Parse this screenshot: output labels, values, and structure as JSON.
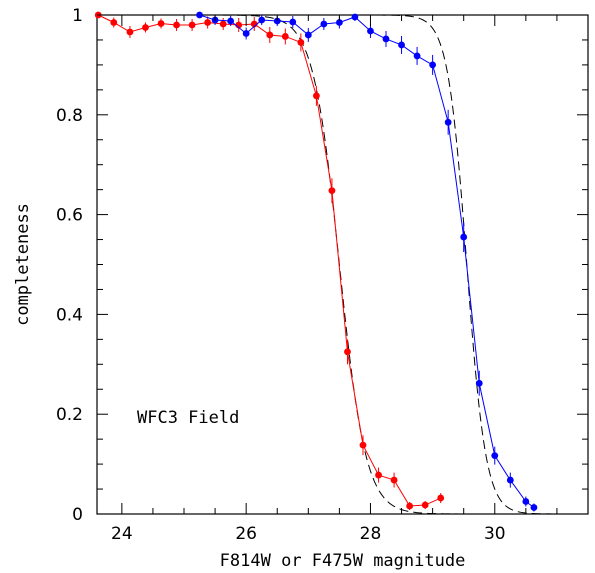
{
  "chart_data": {
    "type": "line",
    "title": "",
    "xlabel": "F814W or F475W magnitude",
    "ylabel": "completeness",
    "xlim": [
      23.6,
      31.5
    ],
    "ylim": [
      0,
      1
    ],
    "x_ticks": [
      "24",
      "26",
      "28",
      "30"
    ],
    "y_ticks": [
      "0",
      "0.2",
      "0.4",
      "0.6",
      "0.8",
      "1"
    ],
    "annotation": "WFC3 Field",
    "grid": false,
    "series": [
      {
        "color": "#ff0000",
        "style": "points-with-errorbars-connected",
        "points": [
          {
            "x": 23.62,
            "y": 1.0,
            "err": 0.005
          },
          {
            "x": 23.87,
            "y": 0.985,
            "err": 0.01
          },
          {
            "x": 24.13,
            "y": 0.966,
            "err": 0.012
          },
          {
            "x": 24.38,
            "y": 0.975,
            "err": 0.01
          },
          {
            "x": 24.63,
            "y": 0.983,
            "err": 0.01
          },
          {
            "x": 24.88,
            "y": 0.98,
            "err": 0.012
          },
          {
            "x": 25.13,
            "y": 0.98,
            "err": 0.012
          },
          {
            "x": 25.38,
            "y": 0.985,
            "err": 0.012
          },
          {
            "x": 25.63,
            "y": 0.982,
            "err": 0.012
          },
          {
            "x": 25.88,
            "y": 0.98,
            "err": 0.014
          },
          {
            "x": 26.13,
            "y": 0.982,
            "err": 0.014
          },
          {
            "x": 26.38,
            "y": 0.96,
            "err": 0.016
          },
          {
            "x": 26.63,
            "y": 0.957,
            "err": 0.016
          },
          {
            "x": 26.88,
            "y": 0.945,
            "err": 0.018
          },
          {
            "x": 27.13,
            "y": 0.838,
            "err": 0.02
          },
          {
            "x": 27.38,
            "y": 0.648,
            "err": 0.025
          },
          {
            "x": 27.63,
            "y": 0.325,
            "err": 0.025
          },
          {
            "x": 27.88,
            "y": 0.138,
            "err": 0.02
          },
          {
            "x": 28.13,
            "y": 0.078,
            "err": 0.015
          },
          {
            "x": 28.38,
            "y": 0.068,
            "err": 0.015
          },
          {
            "x": 28.63,
            "y": 0.016,
            "err": 0.008
          },
          {
            "x": 28.88,
            "y": 0.018,
            "err": 0.008
          },
          {
            "x": 29.13,
            "y": 0.032,
            "err": 0.01
          }
        ]
      },
      {
        "color": "#0000ff",
        "style": "points-with-errorbars-connected",
        "points": [
          {
            "x": 25.25,
            "y": 1.0,
            "err": 0.006
          },
          {
            "x": 25.5,
            "y": 0.99,
            "err": 0.01
          },
          {
            "x": 25.75,
            "y": 0.988,
            "err": 0.01
          },
          {
            "x": 26.0,
            "y": 0.963,
            "err": 0.012
          },
          {
            "x": 26.25,
            "y": 0.99,
            "err": 0.01
          },
          {
            "x": 26.5,
            "y": 0.988,
            "err": 0.01
          },
          {
            "x": 26.75,
            "y": 0.986,
            "err": 0.012
          },
          {
            "x": 27.0,
            "y": 0.96,
            "err": 0.014
          },
          {
            "x": 27.25,
            "y": 0.982,
            "err": 0.012
          },
          {
            "x": 27.5,
            "y": 0.985,
            "err": 0.012
          },
          {
            "x": 27.75,
            "y": 0.996,
            "err": 0.008
          },
          {
            "x": 28.0,
            "y": 0.968,
            "err": 0.014
          },
          {
            "x": 28.25,
            "y": 0.952,
            "err": 0.016
          },
          {
            "x": 28.5,
            "y": 0.94,
            "err": 0.018
          },
          {
            "x": 28.75,
            "y": 0.918,
            "err": 0.018
          },
          {
            "x": 29.0,
            "y": 0.9,
            "err": 0.02
          },
          {
            "x": 29.25,
            "y": 0.785,
            "err": 0.025
          },
          {
            "x": 29.5,
            "y": 0.555,
            "err": 0.03
          },
          {
            "x": 29.75,
            "y": 0.262,
            "err": 0.025
          },
          {
            "x": 30.0,
            "y": 0.117,
            "err": 0.018
          },
          {
            "x": 30.25,
            "y": 0.068,
            "err": 0.015
          },
          {
            "x": 30.5,
            "y": 0.025,
            "err": 0.01
          },
          {
            "x": 30.63,
            "y": 0.013,
            "err": 0.008
          }
        ]
      }
    ],
    "fits": [
      {
        "color": "#000000",
        "dash": "dashed",
        "center": 27.5,
        "width": 0.36
      },
      {
        "color": "#000000",
        "dash": "dashed",
        "center": 29.55,
        "width": 0.26
      }
    ]
  }
}
